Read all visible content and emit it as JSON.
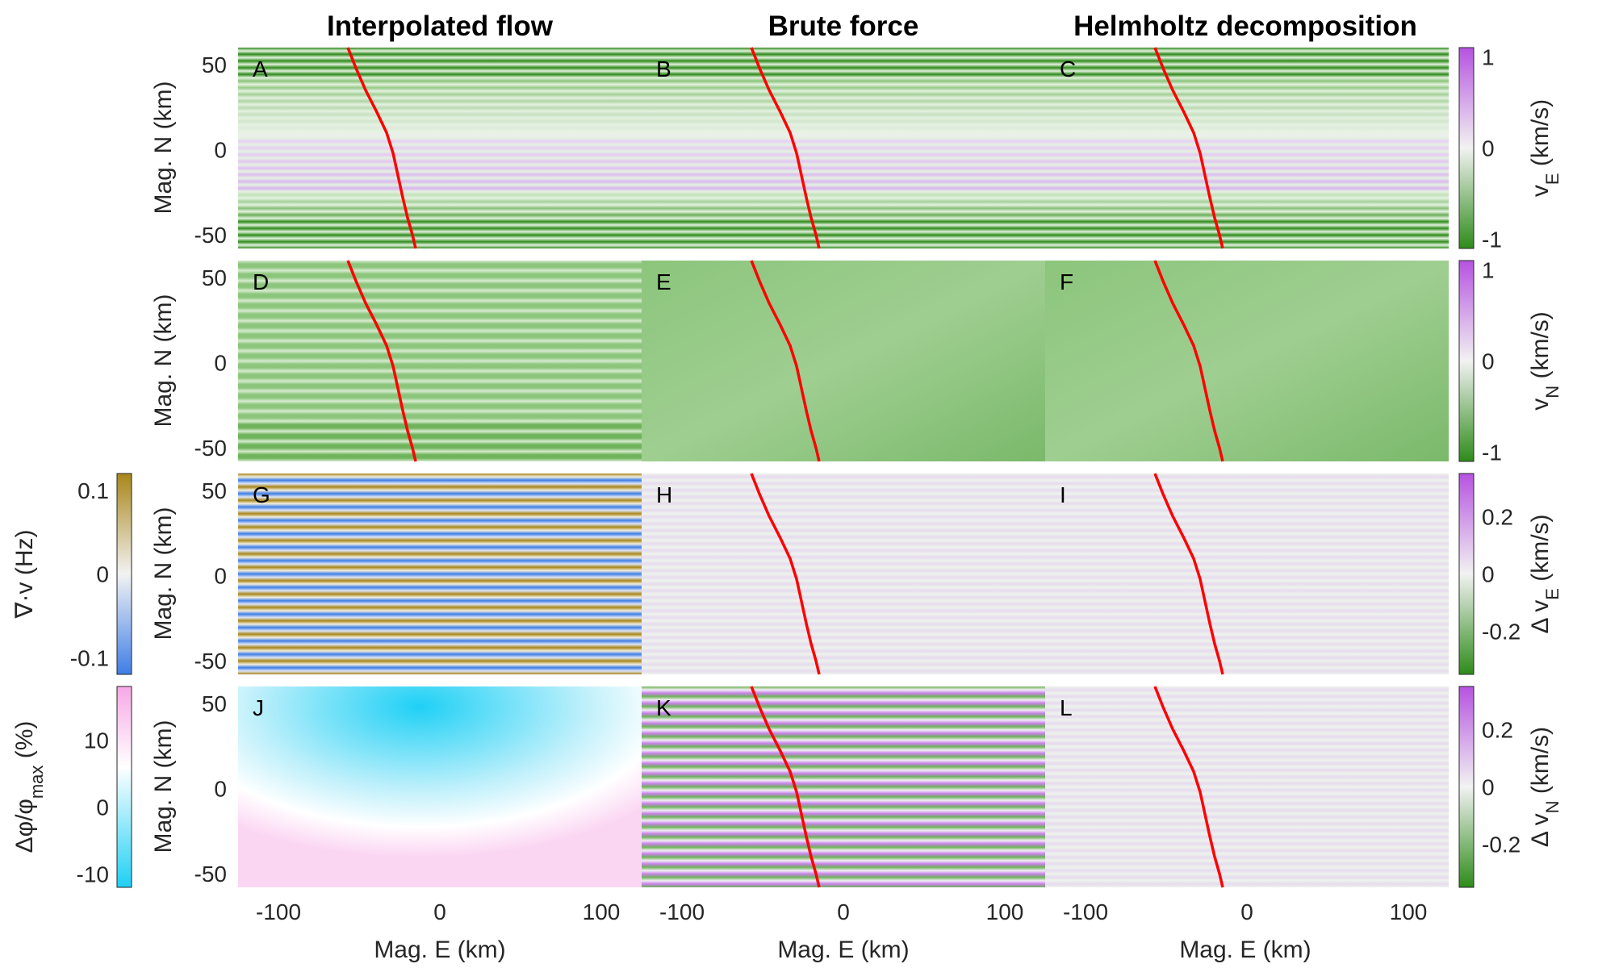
{
  "columns": [
    "Interpolated flow",
    "Brute force",
    "Helmholtz decomposition"
  ],
  "panel_letters": [
    "A",
    "B",
    "C",
    "D",
    "E",
    "F",
    "G",
    "H",
    "I",
    "J",
    "K",
    "L"
  ],
  "axes": {
    "xlabel": "Mag. E (km)",
    "ylabel": "Mag. N (km)",
    "xticks": [
      "-100",
      "0",
      "100"
    ],
    "yticks": [
      "50",
      "0",
      "-50"
    ],
    "xlim": [
      -125,
      125
    ],
    "ylim": [
      -58,
      60
    ]
  },
  "colorbars": {
    "right": [
      {
        "label": "v",
        "sub": "E",
        "unit": " (km/s)",
        "ticks": [
          "1",
          "0",
          "-1"
        ],
        "range": [
          -1.1,
          1.1
        ],
        "scale": "green-white-purple"
      },
      {
        "label": "v",
        "sub": "N",
        "unit": " (km/s)",
        "ticks": [
          "1",
          "0",
          "-1"
        ],
        "range": [
          -1.1,
          1.1
        ],
        "scale": "green-white-purple"
      },
      {
        "label": "Δ v",
        "sub": "E",
        "unit": " (km/s)",
        "ticks": [
          "0.2",
          "0",
          "-0.2"
        ],
        "range": [
          -0.35,
          0.35
        ],
        "scale": "green-white-purple"
      },
      {
        "label": "Δ v",
        "sub": "N",
        "unit": " (km/s)",
        "ticks": [
          "0.2",
          "0",
          "-0.2"
        ],
        "range": [
          -0.35,
          0.35
        ],
        "scale": "green-white-purple"
      }
    ],
    "left": [
      {
        "row": 3,
        "label": "∇·v (Hz)",
        "ticks": [
          "0.1",
          "0",
          "-0.1"
        ],
        "range": [
          -0.12,
          0.12
        ],
        "scale": "blue-white-gold"
      },
      {
        "row": 4,
        "label": "Δφ/φ",
        "sub": "max",
        "unit": " (%)",
        "ticks": [
          "10",
          "0",
          "-10"
        ],
        "range": [
          -12,
          18
        ],
        "scale": "cyan-white-pink"
      }
    ]
  },
  "colors": {
    "green": "#2e8b1a",
    "purple": "#b553e0",
    "white": "#f2f2f2",
    "blue": "#3f7ee6",
    "gold": "#a8861a",
    "cyan": "#1fd0f5",
    "pink": "#f7a8e6",
    "track": "#ff0000"
  },
  "chart_data": {
    "type": "heatmap",
    "panels": [
      {
        "id": "A",
        "row": 1,
        "col": 1,
        "quantity": "v_E",
        "field": "stripes"
      },
      {
        "id": "B",
        "row": 1,
        "col": 2,
        "quantity": "v_E",
        "field": "stripes"
      },
      {
        "id": "C",
        "row": 1,
        "col": 3,
        "quantity": "v_E",
        "field": "stripes"
      },
      {
        "id": "D",
        "row": 2,
        "col": 1,
        "quantity": "v_N",
        "field": "green-stripes"
      },
      {
        "id": "E",
        "row": 2,
        "col": 2,
        "quantity": "v_N",
        "field": "green-smooth"
      },
      {
        "id": "F",
        "row": 2,
        "col": 3,
        "quantity": "v_N",
        "field": "green-smooth"
      },
      {
        "id": "G",
        "row": 3,
        "col": 1,
        "quantity": "divergence",
        "field": "div-stripes"
      },
      {
        "id": "H",
        "row": 3,
        "col": 2,
        "quantity": "Δv_E",
        "field": "residual"
      },
      {
        "id": "I",
        "row": 3,
        "col": 3,
        "quantity": "Δv_E",
        "field": "residual"
      },
      {
        "id": "J",
        "row": 4,
        "col": 1,
        "quantity": "Δφ/φmax",
        "field": "potential"
      },
      {
        "id": "K",
        "row": 4,
        "col": 2,
        "quantity": "Δv_N",
        "field": "stripes"
      },
      {
        "id": "L",
        "row": 4,
        "col": 3,
        "quantity": "Δv_N",
        "field": "residual"
      }
    ],
    "track_points": [
      {
        "x": -57,
        "y": 60
      },
      {
        "x": -52,
        "y": 48
      },
      {
        "x": -46,
        "y": 35
      },
      {
        "x": -39,
        "y": 22
      },
      {
        "x": -33,
        "y": 10
      },
      {
        "x": -29,
        "y": -2
      },
      {
        "x": -26,
        "y": -15
      },
      {
        "x": -23,
        "y": -28
      },
      {
        "x": -20,
        "y": -40
      },
      {
        "x": -17,
        "y": -50
      },
      {
        "x": -15,
        "y": -58
      }
    ]
  }
}
